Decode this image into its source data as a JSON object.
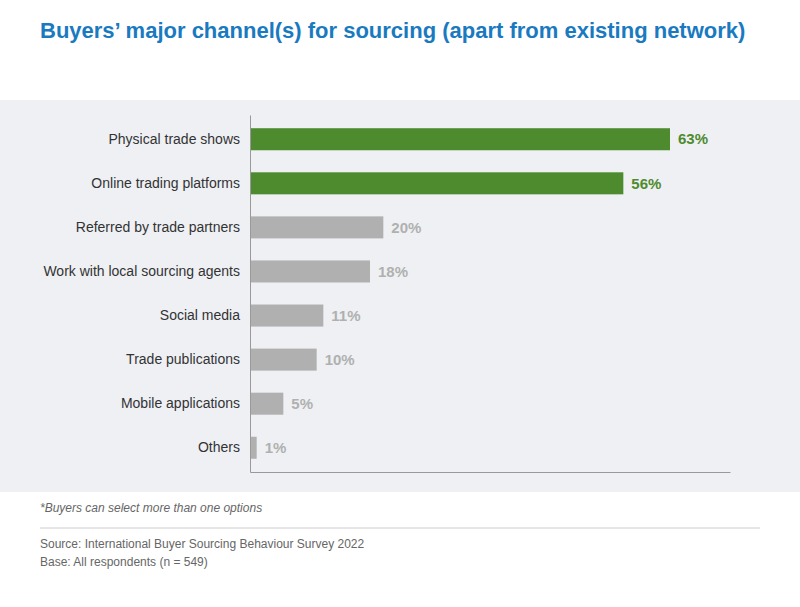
{
  "chart_data": {
    "type": "bar",
    "orientation": "horizontal",
    "title": "Buyers’ major channel(s) for sourcing (apart from existing network)",
    "categories": [
      "Physical trade shows",
      "Online trading platforms",
      "Referred by trade partners",
      "Work with local sourcing agents",
      "Social media",
      "Trade publications",
      "Mobile applications",
      "Others"
    ],
    "values": [
      63,
      56,
      20,
      18,
      11,
      10,
      5,
      1
    ],
    "value_labels": [
      "63%",
      "56%",
      "20%",
      "18%",
      "11%",
      "10%",
      "5%",
      "1%"
    ],
    "data_labels": true,
    "colors": [
      "#4e8a2e",
      "#4e8a2e",
      "#b0b0b0",
      "#b0b0b0",
      "#b0b0b0",
      "#b0b0b0",
      "#b0b0b0",
      "#b0b0b0"
    ],
    "xlim": [
      0,
      72
    ],
    "xticks": [],
    "tick_labels": "y",
    "grid": false,
    "annotations": [
      "*Buyers can select more than one options",
      "Source: International Buyer Sourcing Behaviour Survey 2022",
      "Base: All respondents (n = 549)"
    ]
  }
}
